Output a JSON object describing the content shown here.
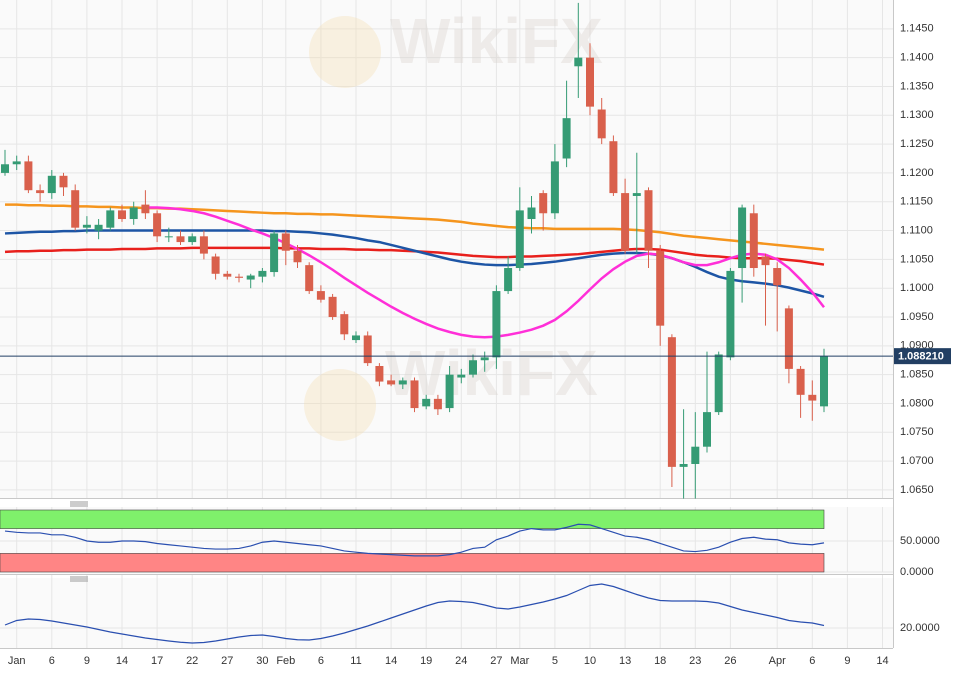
{
  "watermark": "WikiFX",
  "chart_data": [
    {
      "type": "candlestick",
      "categories": [
        null,
        "Jan",
        null,
        null,
        "6",
        null,
        null,
        "9",
        null,
        null,
        "14",
        null,
        null,
        "17",
        null,
        null,
        "22",
        null,
        null,
        "27",
        null,
        null,
        "30",
        null,
        "Feb",
        null,
        null,
        "6",
        null,
        null,
        "11",
        null,
        null,
        "14",
        null,
        null,
        "19",
        null,
        null,
        "24",
        null,
        null,
        "27",
        null,
        "Mar",
        null,
        null,
        "5",
        null,
        null,
        "10",
        null,
        null,
        "13",
        null,
        null,
        "18",
        null,
        null,
        "23",
        null,
        null,
        "26",
        null,
        null,
        null,
        "Apr",
        null,
        null,
        "6",
        null,
        null,
        "9",
        null,
        null,
        "14"
      ],
      "open": [
        1.12,
        1.1215,
        1.122,
        1.117,
        1.1165,
        1.1195,
        1.117,
        1.1105,
        1.11,
        1.1105,
        1.1135,
        1.112,
        1.1145,
        1.113,
        1.109,
        1.109,
        1.108,
        1.109,
        1.1055,
        1.1025,
        1.102,
        1.1015,
        1.102,
        1.1028,
        1.1095,
        1.1065,
        1.104,
        1.0995,
        1.0985,
        1.0955,
        1.091,
        1.0918,
        1.0865,
        1.084,
        1.0833,
        1.084,
        1.0795,
        1.0808,
        1.0792,
        1.0845,
        1.085,
        1.0875,
        1.088,
        1.0995,
        1.1035,
        1.112,
        1.1165,
        1.113,
        1.1225,
        1.1385,
        1.14,
        1.131,
        1.1255,
        1.1165,
        1.116,
        1.117,
        1.1065,
        1.0915,
        1.069,
        1.0695,
        1.0725,
        1.0785,
        1.088,
        1.1035,
        1.113,
        1.1055,
        1.1035,
        1.0965,
        1.086,
        1.0815,
        1.0795,
        null,
        null,
        null,
        null,
        null
      ],
      "high": [
        1.124,
        1.123,
        1.123,
        1.118,
        1.1205,
        1.12,
        1.118,
        1.1125,
        1.112,
        1.114,
        1.1145,
        1.115,
        1.117,
        1.1135,
        1.1105,
        1.11,
        1.1095,
        1.11,
        1.106,
        1.103,
        1.1025,
        1.1025,
        1.1035,
        1.11,
        1.11,
        1.1075,
        1.1045,
        1.1005,
        1.099,
        1.096,
        1.0925,
        1.0925,
        1.087,
        1.085,
        1.0845,
        1.0845,
        1.0815,
        1.0815,
        1.0865,
        1.086,
        1.0885,
        1.089,
        1.1005,
        1.1055,
        1.1175,
        1.116,
        1.117,
        1.125,
        1.136,
        1.1495,
        1.1425,
        1.133,
        1.1265,
        1.119,
        1.1235,
        1.1175,
        1.1075,
        1.092,
        1.079,
        1.0785,
        1.089,
        1.089,
        1.1035,
        1.1145,
        1.1145,
        1.106,
        1.1045,
        1.097,
        1.0865,
        1.084,
        1.0895,
        null,
        null,
        null,
        null,
        null
      ],
      "low": [
        1.1195,
        1.1205,
        1.1165,
        1.115,
        1.1155,
        1.116,
        1.11,
        1.1095,
        1.1085,
        1.11,
        1.1115,
        1.111,
        1.112,
        1.108,
        1.108,
        1.1075,
        1.1075,
        1.105,
        1.1015,
        1.1015,
        1.101,
        1.1,
        1.101,
        1.102,
        1.104,
        1.1035,
        1.099,
        1.0975,
        1.0945,
        1.091,
        1.0905,
        1.0865,
        1.083,
        1.083,
        1.0825,
        1.0785,
        1.079,
        1.078,
        1.0785,
        1.0835,
        1.0845,
        1.0855,
        1.086,
        1.099,
        1.103,
        1.1095,
        1.11,
        1.112,
        1.121,
        1.133,
        1.13,
        1.125,
        1.116,
        1.106,
        1.106,
        1.1035,
        1.09,
        1.0655,
        1.0635,
        1.0635,
        1.0715,
        1.078,
        1.0875,
        1.0975,
        1.102,
        1.0935,
        1.0925,
        1.0835,
        1.0775,
        1.077,
        1.0785,
        null,
        null,
        null,
        null,
        null
      ],
      "close": [
        1.1215,
        1.122,
        1.117,
        1.1165,
        1.1195,
        1.1175,
        1.1105,
        1.111,
        1.111,
        1.1135,
        1.112,
        1.114,
        1.113,
        1.109,
        1.109,
        1.108,
        1.109,
        1.106,
        1.1025,
        1.102,
        1.1018,
        1.1022,
        1.103,
        1.1095,
        1.1065,
        1.1045,
        1.0995,
        1.098,
        1.095,
        1.092,
        1.0918,
        1.087,
        1.0838,
        1.0833,
        1.084,
        1.0792,
        1.0808,
        1.079,
        1.085,
        1.085,
        1.0875,
        1.088,
        1.0995,
        1.1035,
        1.1135,
        1.114,
        1.113,
        1.122,
        1.1295,
        1.14,
        1.1315,
        1.126,
        1.1165,
        1.1065,
        1.1165,
        1.1065,
        1.0935,
        1.069,
        1.0695,
        1.0725,
        1.0785,
        1.0885,
        1.103,
        1.114,
        1.1035,
        1.104,
        1.1005,
        1.086,
        1.0815,
        1.0805,
        1.08821,
        null,
        null,
        null,
        null,
        null
      ],
      "up_color": "#359b74",
      "down_color": "#d9604c",
      "series": [
        {
          "color": "#f5951d",
          "values": [
            1.1145,
            1.1145,
            1.1144,
            1.1144,
            1.1143,
            1.1143,
            1.1142,
            1.1142,
            1.1141,
            1.1141,
            1.114,
            1.114,
            1.1139,
            1.1139,
            1.1138,
            1.1138,
            1.1137,
            1.1136,
            1.1135,
            1.1134,
            1.1133,
            1.1132,
            1.1131,
            1.113,
            1.113,
            1.1129,
            1.1129,
            1.1128,
            1.1128,
            1.1127,
            1.1126,
            1.1125,
            1.1124,
            1.1123,
            1.1122,
            1.1121,
            1.112,
            1.1119,
            1.1117,
            1.1115,
            1.1112,
            1.111,
            1.1108,
            1.1106,
            1.1105,
            1.1104,
            1.1104,
            1.1103,
            1.1103,
            1.1103,
            1.1103,
            1.1103,
            1.1103,
            1.1102,
            1.1101,
            1.1099,
            1.1097,
            1.1094,
            1.1091,
            1.1089,
            1.1087,
            1.1085,
            1.1083,
            1.1081,
            1.1079,
            1.1077,
            1.1075,
            1.1073,
            1.1071,
            1.1069,
            1.1067,
            null,
            null,
            null,
            null,
            null
          ]
        },
        {
          "color": "#e8201c",
          "values": [
            1.1063,
            1.1064,
            1.1064,
            1.1065,
            1.1065,
            1.1066,
            1.1066,
            1.1067,
            1.1067,
            1.1067,
            1.1068,
            1.1068,
            1.1068,
            1.1069,
            1.1069,
            1.1069,
            1.107,
            1.107,
            1.107,
            1.107,
            1.107,
            1.107,
            1.107,
            1.107,
            1.1069,
            1.1069,
            1.1069,
            1.1068,
            1.1068,
            1.1068,
            1.1067,
            1.1067,
            1.1066,
            1.1066,
            1.1065,
            1.1064,
            1.1063,
            1.1062,
            1.106,
            1.1058,
            1.1056,
            1.1055,
            1.1054,
            1.1054,
            1.1055,
            1.1055,
            1.1056,
            1.1057,
            1.1058,
            1.1059,
            1.1061,
            1.1063,
            1.1065,
            1.1067,
            1.1068,
            1.1068,
            1.1067,
            1.1064,
            1.1061,
            1.1058,
            1.1056,
            1.1055,
            1.1053,
            1.1052,
            1.1052,
            1.1052,
            1.1051,
            1.1049,
            1.1047,
            1.1044,
            1.1041,
            null,
            null,
            null,
            null,
            null
          ]
        },
        {
          "color": "#1d55a5",
          "values": [
            1.1095,
            1.1096,
            1.1097,
            1.1098,
            1.1098,
            1.1099,
            1.1099,
            1.11,
            1.11,
            1.11,
            1.11,
            1.11,
            1.11,
            1.11,
            1.11,
            1.11,
            1.11,
            1.11,
            1.11,
            1.11,
            1.11,
            1.11,
            1.11,
            1.1099,
            1.1099,
            1.1098,
            1.1097,
            1.1095,
            1.1093,
            1.109,
            1.1087,
            1.1083,
            1.108,
            1.1075,
            1.107,
            1.1065,
            1.106,
            1.1055,
            1.105,
            1.1046,
            1.1043,
            1.1041,
            1.104,
            1.104,
            1.1041,
            1.1042,
            1.1044,
            1.1046,
            1.1049,
            1.1052,
            1.1055,
            1.1058,
            1.106,
            1.1061,
            1.1061,
            1.106,
            1.1057,
            1.1052,
            1.1045,
            1.1037,
            1.1028,
            1.102,
            1.1015,
            1.1012,
            1.101,
            1.1008,
            1.1005,
            1.1001,
            1.0996,
            1.0991,
            1.0985,
            null,
            null,
            null,
            null,
            null
          ]
        },
        {
          "color": "#ff2fd8",
          "values": [
            null,
            null,
            null,
            null,
            null,
            null,
            null,
            null,
            null,
            null,
            null,
            null,
            1.114,
            1.114,
            1.1139,
            1.1137,
            1.1134,
            1.113,
            1.1124,
            1.1117,
            1.111,
            1.1102,
            1.1095,
            1.1087,
            1.1078,
            1.1068,
            1.1057,
            1.1045,
            1.1032,
            1.1018,
            1.1005,
            1.0992,
            1.098,
            1.0968,
            1.0957,
            1.0947,
            1.0938,
            1.093,
            1.0924,
            1.0919,
            1.0916,
            1.0915,
            1.0916,
            1.0919,
            1.0923,
            1.0928,
            1.0935,
            1.0945,
            1.096,
            1.0978,
            1.0998,
            1.1017,
            1.1033,
            1.1046,
            1.1056,
            1.106,
            1.1058,
            1.1052,
            1.1045,
            1.104,
            1.104,
            1.1045,
            1.1052,
            1.1058,
            1.106,
            1.1058,
            1.105,
            1.1035,
            1.1015,
            1.0993,
            1.0967,
            null,
            null,
            null,
            null,
            null
          ]
        }
      ],
      "ylim": [
        1.0636,
        1.15
      ],
      "yticks": [
        {
          "value": 1.065,
          "label": "1.0650"
        },
        {
          "value": 1.07,
          "label": "1.0700"
        },
        {
          "value": 1.075,
          "label": "1.0750"
        },
        {
          "value": 1.08,
          "label": "1.0800"
        },
        {
          "value": 1.085,
          "label": "1.0850"
        },
        {
          "value": 1.09,
          "label": "1.0900"
        },
        {
          "value": 1.095,
          "label": "1.0950"
        },
        {
          "value": 1.1,
          "label": "1.1000"
        },
        {
          "value": 1.105,
          "label": "1.1050"
        },
        {
          "value": 1.11,
          "label": "1.1100"
        },
        {
          "value": 1.115,
          "label": "1.1150"
        },
        {
          "value": 1.12,
          "label": "1.1200"
        },
        {
          "value": 1.125,
          "label": "1.1250"
        },
        {
          "value": 1.13,
          "label": "1.1300"
        },
        {
          "value": 1.135,
          "label": "1.1350"
        },
        {
          "value": 1.14,
          "label": "1.1400"
        },
        {
          "value": 1.145,
          "label": "1.1450"
        }
      ],
      "last_price": {
        "value": 1.08821,
        "label": "1.088210",
        "color": "#223f63"
      },
      "grid": true
    },
    {
      "type": "line",
      "bands": [
        {
          "range": [
            70,
            100
          ],
          "color": "#7ff06b"
        },
        {
          "range": [
            0,
            30
          ],
          "color": "#ff8585"
        }
      ],
      "series": [
        {
          "color": "#2a4fb0",
          "values": [
            66,
            64,
            63,
            63,
            60,
            60,
            56,
            50,
            48,
            48,
            50,
            50,
            49,
            46,
            44,
            42,
            40,
            38,
            37,
            37,
            38,
            42,
            48,
            50,
            48,
            46,
            44,
            42,
            38,
            34,
            32,
            30,
            29,
            28,
            27,
            26,
            26,
            26,
            28,
            32,
            38,
            40,
            52,
            58,
            66,
            70,
            68,
            68,
            72,
            77,
            76,
            70,
            64,
            58,
            56,
            52,
            46,
            40,
            34,
            33,
            35,
            40,
            48,
            54,
            56,
            53,
            52,
            47,
            45,
            44,
            47,
            null,
            null,
            null,
            null,
            null
          ]
        }
      ],
      "ylim": [
        0,
        100
      ],
      "yticks": [
        {
          "value": 50,
          "label": "50.0000"
        },
        {
          "value": 0,
          "label": "0.0000"
        }
      ]
    },
    {
      "type": "line",
      "series": [
        {
          "color": "#2a4fb0",
          "values": [
            21.2,
            23,
            23.6,
            23.4,
            22.8,
            22,
            21.2,
            20.4,
            19.4,
            18.4,
            17.6,
            16.8,
            16,
            15.4,
            14.8,
            14.3,
            14,
            14.2,
            14.8,
            15.6,
            16.4,
            17,
            17.2,
            16.6,
            15.8,
            15.3,
            15.2,
            15.8,
            16.8,
            18,
            19.4,
            20.8,
            22.4,
            24,
            25.6,
            27.2,
            28.8,
            30.2,
            30.8,
            30.6,
            30.2,
            29.2,
            28,
            27.6,
            28.4,
            29.4,
            30.4,
            31.6,
            33,
            35,
            37,
            37.6,
            36.6,
            35,
            33.4,
            32,
            31,
            30.8,
            30.8,
            30.8,
            30.6,
            30,
            28.6,
            27.2,
            26.2,
            25.2,
            24.2,
            23,
            22.4,
            22,
            21,
            null,
            null,
            null,
            null,
            null
          ]
        }
      ],
      "ylim": [
        12,
        40
      ],
      "yticks": [
        {
          "value": 20,
          "label": "20.0000"
        }
      ]
    }
  ]
}
